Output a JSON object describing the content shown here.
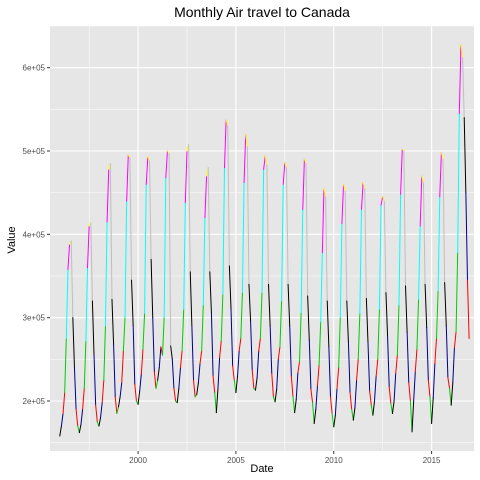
{
  "chart_data": {
    "type": "line",
    "title": "Monthly Air travel to Canada",
    "xlabel": "Date",
    "ylabel": "Value",
    "xlim": [
      "1995-07",
      "2017-03"
    ],
    "ylim": [
      140000,
      650000
    ],
    "x_ticks": [
      2000,
      2005,
      2010,
      2015
    ],
    "x_tick_labels": [
      "2000",
      "2005",
      "2010",
      "2015"
    ],
    "y_ticks": [
      200000,
      300000,
      400000,
      500000,
      600000
    ],
    "y_tick_labels": [
      "2e+05",
      "3e+05",
      "4e+05",
      "5e+05",
      "6e+05"
    ],
    "grid": true,
    "legend": "none",
    "background_color": "#e6e6e6",
    "grid_color": "#ffffff",
    "series": [
      {
        "start": "1996-01",
        "end": "2016-12",
        "month_colors": [
          "#000000",
          "#00008b",
          "#ff0000",
          "#00cc00",
          "#00ffff",
          "#ff00ff",
          "#ffff00",
          "#bebebe",
          "#000000",
          "#00008b",
          "#ff0000",
          "#00cc00"
        ],
        "values": [
          158000,
          170000,
          185000,
          210000,
          275000,
          358000,
          388000,
          392000,
          300000,
          240000,
          190000,
          170000,
          162000,
          172000,
          190000,
          215000,
          272000,
          360000,
          410000,
          414000,
          320000,
          255000,
          195000,
          175000,
          170000,
          180000,
          198000,
          225000,
          290000,
          415000,
          478000,
          485000,
          322000,
          268000,
          205000,
          185000,
          193000,
          205000,
          222000,
          260000,
          300000,
          440000,
          495000,
          492000,
          345000,
          290000,
          220000,
          200000,
          196000,
          212000,
          232000,
          262000,
          305000,
          460000,
          493000,
          488000,
          370000,
          300000,
          235000,
          215000,
          225000,
          240000,
          265000,
          255000,
          300000,
          468000,
          500000,
          497000,
          266000,
          250000,
          215000,
          200000,
          198000,
          215000,
          240000,
          260000,
          310000,
          438000,
          500000,
          508000,
          355000,
          290000,
          225000,
          205000,
          208000,
          222000,
          245000,
          260000,
          315000,
          420000,
          470000,
          480000,
          355000,
          305000,
          230000,
          210000,
          186000,
          215000,
          252000,
          272000,
          328000,
          480000,
          537000,
          530000,
          362000,
          310000,
          242000,
          225000,
          210000,
          230000,
          260000,
          275000,
          330000,
          462000,
          520000,
          505000,
          340000,
          296000,
          237000,
          215000,
          213000,
          228000,
          260000,
          275000,
          330000,
          478000,
          494000,
          483000,
          340000,
          290000,
          233000,
          205000,
          199000,
          214000,
          250000,
          265000,
          320000,
          460000,
          486000,
          480000,
          340000,
          290000,
          230000,
          205000,
          186000,
          202000,
          234000,
          247000,
          306000,
          430000,
          490000,
          485000,
          326000,
          273000,
          214000,
          198000,
          173000,
          190000,
          218000,
          243000,
          295000,
          378000,
          455000,
          445000,
          320000,
          265000,
          205000,
          185000,
          169000,
          183000,
          215000,
          240000,
          300000,
          413000,
          460000,
          452000,
          320000,
          270000,
          210000,
          190000,
          177000,
          192000,
          225000,
          250000,
          305000,
          430000,
          462000,
          455000,
          323000,
          270000,
          212000,
          195000,
          183000,
          200000,
          230000,
          250000,
          310000,
          435000,
          445000,
          440000,
          330000,
          278000,
          217000,
          197000,
          185000,
          200000,
          233000,
          255000,
          315000,
          448000,
          502000,
          500000,
          338000,
          282000,
          222000,
          200000,
          163000,
          200000,
          235000,
          262000,
          322000,
          410000,
          470000,
          462000,
          340000,
          288000,
          225000,
          205000,
          173000,
          204000,
          245000,
          275000,
          332000,
          445000,
          498000,
          490000,
          342000,
          290000,
          228000,
          215000,
          195000,
          222000,
          264000,
          283000,
          378000,
          545000,
          628000,
          612000,
          540000,
          450000,
          345000,
          275000
        ]
      }
    ]
  }
}
